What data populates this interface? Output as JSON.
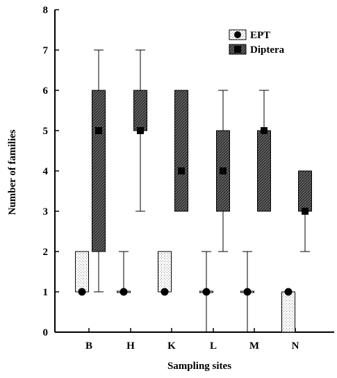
{
  "chart_data": {
    "type": "box",
    "xlabel": "Sampling sites",
    "ylabel": "Number of families",
    "ylim": [
      0,
      8
    ],
    "yticks": [
      0,
      1,
      2,
      3,
      4,
      5,
      6,
      7,
      8
    ],
    "categories": [
      "B",
      "H",
      "K",
      "L",
      "M",
      "N"
    ],
    "legend_position": "top-right",
    "series": [
      {
        "name": "EPT",
        "fill": "dotted",
        "marker": "circle",
        "boxes": [
          {
            "site": "B",
            "min": 1,
            "q1": 1,
            "median": 1,
            "q3": 2,
            "max": 2
          },
          {
            "site": "H",
            "min": 1,
            "q1": 1,
            "median": 1,
            "q3": 1,
            "max": 2
          },
          {
            "site": "K",
            "min": 1,
            "q1": 1,
            "median": 1,
            "q3": 2,
            "max": 2
          },
          {
            "site": "L",
            "min": 0,
            "q1": 1,
            "median": 1,
            "q3": 1,
            "max": 2
          },
          {
            "site": "M",
            "min": 0,
            "q1": 1,
            "median": 1,
            "q3": 1,
            "max": 2
          },
          {
            "site": "N",
            "min": 0,
            "q1": 0,
            "median": 1,
            "q3": 1,
            "max": 1
          }
        ]
      },
      {
        "name": "Diptera",
        "fill": "cross-hatched",
        "marker": "square",
        "boxes": [
          {
            "site": "B",
            "min": 1,
            "q1": 2,
            "median": 5,
            "q3": 6,
            "max": 7
          },
          {
            "site": "H",
            "min": 3,
            "q1": 5,
            "median": 5,
            "q3": 6,
            "max": 7
          },
          {
            "site": "K",
            "min": 3,
            "q1": 3,
            "median": 4,
            "q3": 6,
            "max": 6
          },
          {
            "site": "L",
            "min": 2,
            "q1": 3,
            "median": 4,
            "q3": 5,
            "max": 6
          },
          {
            "site": "M",
            "min": 3,
            "q1": 3,
            "median": 5,
            "q3": 5,
            "max": 6
          },
          {
            "site": "N",
            "min": 2,
            "q1": 3,
            "median": 3,
            "q3": 4,
            "max": 4
          }
        ]
      }
    ]
  }
}
